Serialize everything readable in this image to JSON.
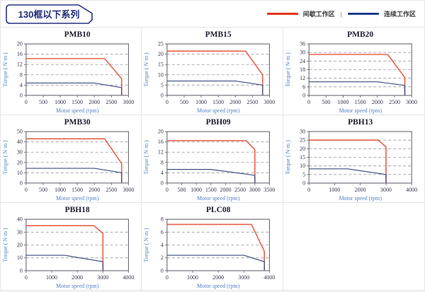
{
  "header": {
    "title": "130框以下系列"
  },
  "legend": {
    "separator": "|",
    "items": [
      {
        "label": "间歇工作区",
        "color": "#e43418"
      },
      {
        "label": "连续工作区",
        "color": "#1c3c8c"
      }
    ]
  },
  "colors": {
    "intermittent_line": "#e8604a",
    "continuous_line": "#3d4d80",
    "axis_title": "#4d7fc4",
    "header_accent": "#28327e"
  },
  "chart_data": [
    {
      "type": "line",
      "title": "PMB10",
      "xlabel": "Motor speed (rpm)",
      "ylabel": "Torque ( N·m )",
      "xlim": [
        0,
        3000
      ],
      "xticks": [
        0,
        500,
        1000,
        1500,
        2000,
        2500,
        3000
      ],
      "ylim": [
        0,
        20
      ],
      "yticks": [
        0,
        4,
        8,
        12,
        16,
        20
      ],
      "grid": "horizontal-dashed",
      "legend_position": "none",
      "series": [
        {
          "name": "间歇工作区",
          "color": "#e8604a",
          "points": [
            [
              0,
              14.3
            ],
            [
              2300,
              14.3
            ],
            [
              2800,
              6.5
            ],
            [
              2800,
              0
            ]
          ]
        },
        {
          "name": "连续工作区",
          "color": "#3d4d80",
          "points": [
            [
              0,
              4.8
            ],
            [
              2000,
              4.8
            ],
            [
              2800,
              3
            ],
            [
              2800,
              0
            ]
          ]
        }
      ]
    },
    {
      "type": "line",
      "title": "PMB15",
      "xlabel": "Motor speed (rpm)",
      "ylabel": "Torque ( N·m )",
      "xlim": [
        0,
        3000
      ],
      "xticks": [
        0,
        500,
        1000,
        1500,
        2000,
        2500,
        3000
      ],
      "ylim": [
        0,
        25
      ],
      "yticks": [
        0,
        5,
        10,
        15,
        20,
        25
      ],
      "grid": "horizontal-dashed",
      "legend_position": "none",
      "series": [
        {
          "name": "间歇工作区",
          "color": "#e8604a",
          "points": [
            [
              0,
              21.5
            ],
            [
              2300,
              21.5
            ],
            [
              2800,
              10
            ],
            [
              2800,
              0
            ]
          ]
        },
        {
          "name": "连续工作区",
          "color": "#3d4d80",
          "points": [
            [
              0,
              7
            ],
            [
              2000,
              7
            ],
            [
              2800,
              5
            ],
            [
              2800,
              0
            ]
          ]
        }
      ]
    },
    {
      "type": "line",
      "title": "PMB20",
      "xlabel": "Motor speed (rpm)",
      "ylabel": "Torque ( N·m )",
      "xlim": [
        0,
        3000
      ],
      "xticks": [
        0,
        500,
        1000,
        1500,
        2000,
        2500,
        3000
      ],
      "ylim": [
        0,
        36
      ],
      "yticks": [
        0,
        6,
        12,
        18,
        24,
        30,
        36
      ],
      "grid": "horizontal-dashed",
      "legend_position": "none",
      "series": [
        {
          "name": "间歇工作区",
          "color": "#e8604a",
          "points": [
            [
              0,
              28.6
            ],
            [
              2300,
              28.6
            ],
            [
              2800,
              12.5
            ],
            [
              2800,
              0
            ]
          ]
        },
        {
          "name": "连续工作区",
          "color": "#3d4d80",
          "points": [
            [
              0,
              9.5
            ],
            [
              2000,
              9.5
            ],
            [
              2800,
              7
            ],
            [
              2800,
              0
            ]
          ]
        }
      ]
    },
    {
      "type": "line",
      "title": "PMB30",
      "xlabel": "Motor speed (rpm)",
      "ylabel": "Torque ( N·m )",
      "xlim": [
        0,
        3000
      ],
      "xticks": [
        0,
        500,
        1000,
        1500,
        2000,
        2500,
        3000
      ],
      "ylim": [
        0,
        50
      ],
      "yticks": [
        0,
        10,
        20,
        30,
        40,
        50
      ],
      "grid": "horizontal-dashed",
      "legend_position": "none",
      "series": [
        {
          "name": "间歇工作区",
          "color": "#e8604a",
          "points": [
            [
              0,
              43
            ],
            [
              2300,
              43
            ],
            [
              2800,
              19
            ],
            [
              2800,
              0
            ]
          ]
        },
        {
          "name": "连续工作区",
          "color": "#3d4d80",
          "points": [
            [
              0,
              14.3
            ],
            [
              2000,
              14.3
            ],
            [
              2800,
              10
            ],
            [
              2800,
              0
            ]
          ]
        }
      ]
    },
    {
      "type": "line",
      "title": "PBH09",
      "xlabel": "Motor speed (rpm)",
      "ylabel": "Torque ( N·m )",
      "xlim": [
        0,
        3500
      ],
      "xticks": [
        0,
        500,
        1000,
        1500,
        2000,
        2500,
        3000,
        3500
      ],
      "ylim": [
        0,
        20
      ],
      "yticks": [
        0,
        4,
        8,
        12,
        16,
        20
      ],
      "grid": "horizontal-dashed",
      "legend_position": "none",
      "series": [
        {
          "name": "间歇工作区",
          "color": "#e8604a",
          "points": [
            [
              0,
              16.5
            ],
            [
              2700,
              16.5
            ],
            [
              3000,
              13
            ],
            [
              3000,
              0
            ]
          ]
        },
        {
          "name": "连续工作区",
          "color": "#3d4d80",
          "points": [
            [
              0,
              5.3
            ],
            [
              1500,
              5.3
            ],
            [
              3000,
              3
            ],
            [
              3000,
              0
            ]
          ]
        }
      ]
    },
    {
      "type": "line",
      "title": "PBH13",
      "xlabel": "Motor speed (rpm)",
      "ylabel": "Torque ( N·m )",
      "xlim": [
        0,
        4000
      ],
      "xticks": [
        0,
        1000,
        2000,
        3000,
        4000
      ],
      "ylim": [
        0,
        30
      ],
      "yticks": [
        0,
        5,
        10,
        15,
        20,
        25,
        30
      ],
      "grid": "horizontal-dashed",
      "legend_position": "none",
      "series": [
        {
          "name": "间歇工作区",
          "color": "#e8604a",
          "points": [
            [
              0,
              25
            ],
            [
              2700,
              25
            ],
            [
              3000,
              21
            ],
            [
              3000,
              0
            ]
          ]
        },
        {
          "name": "连续工作区",
          "color": "#3d4d80",
          "points": [
            [
              0,
              8.3
            ],
            [
              1500,
              8.3
            ],
            [
              3000,
              5
            ],
            [
              3000,
              0
            ]
          ]
        }
      ]
    },
    {
      "type": "line",
      "title": "PBH18",
      "xlabel": "Motor speed (rpm)",
      "ylabel": "Torque ( N·m )",
      "xlim": [
        0,
        4000
      ],
      "xticks": [
        0,
        1000,
        2000,
        3000,
        4000
      ],
      "ylim": [
        0,
        40
      ],
      "yticks": [
        0,
        10,
        20,
        30,
        40
      ],
      "grid": "horizontal-dashed",
      "legend_position": "none",
      "series": [
        {
          "name": "间歇工作区",
          "color": "#e8604a",
          "points": [
            [
              0,
              35
            ],
            [
              2650,
              35
            ],
            [
              3000,
              29
            ],
            [
              3000,
              0
            ]
          ]
        },
        {
          "name": "连续工作区",
          "color": "#3d4d80",
          "points": [
            [
              0,
              12
            ],
            [
              1500,
              12
            ],
            [
              3000,
              7
            ],
            [
              3000,
              0
            ]
          ]
        }
      ]
    },
    {
      "type": "line",
      "title": "PLC08",
      "xlabel": "Motor speed (rpm)",
      "ylabel": "Torque ( N·m )",
      "xlim": [
        0,
        4000
      ],
      "xticks": [
        0,
        1000,
        2000,
        3000,
        4000
      ],
      "ylim": [
        0,
        8
      ],
      "yticks": [
        0,
        2,
        4,
        6,
        8
      ],
      "grid": "horizontal-dashed",
      "legend_position": "none",
      "series": [
        {
          "name": "间歇工作区",
          "color": "#e8604a",
          "points": [
            [
              0,
              7.2
            ],
            [
              3300,
              7.2
            ],
            [
              3800,
              3
            ],
            [
              3800,
              0
            ]
          ]
        },
        {
          "name": "连续工作区",
          "color": "#3d4d80",
          "points": [
            [
              0,
              2.4
            ],
            [
              3000,
              2.4
            ],
            [
              3800,
              1.4
            ],
            [
              3800,
              0
            ]
          ]
        }
      ]
    }
  ]
}
